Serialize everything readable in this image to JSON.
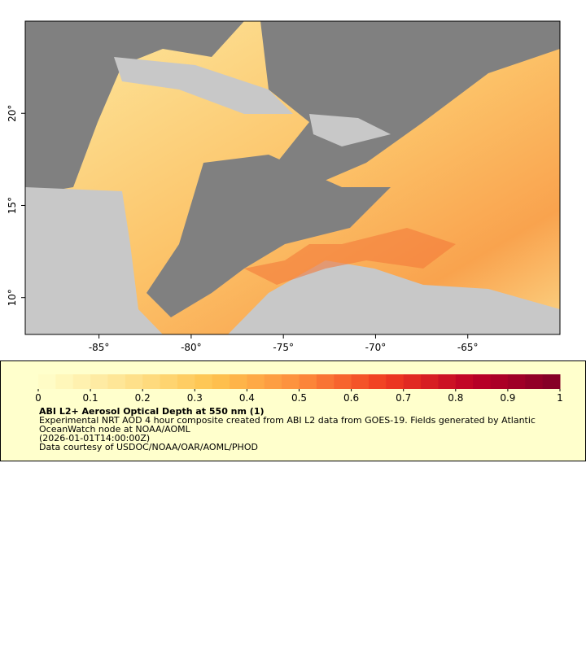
{
  "map": {
    "lon_range": [
      -89,
      -60
    ],
    "lat_range": [
      8,
      25
    ],
    "lon_ticks": [
      {
        "value": -85,
        "label": "-85°"
      },
      {
        "value": -80,
        "label": "-80°"
      },
      {
        "value": -75,
        "label": "-75°"
      },
      {
        "value": -70,
        "label": "-70°"
      },
      {
        "value": -65,
        "label": "-65°"
      }
    ],
    "lat_ticks": [
      {
        "value": 10,
        "label": "10°"
      },
      {
        "value": 15,
        "label": "15°"
      },
      {
        "value": 20,
        "label": "20°"
      }
    ]
  },
  "colorbar": {
    "range": [
      0,
      1
    ],
    "ticks": [
      0,
      0.1,
      0.2,
      0.3,
      0.4,
      0.5,
      0.6,
      0.7,
      0.8,
      0.9,
      1
    ],
    "colors": [
      "#ffffcc",
      "#fee391",
      "#fec44f",
      "#fd8d3c",
      "#f03b20",
      "#bd0026",
      "#800026"
    ]
  },
  "legend": {
    "title": "ABI L2+ Aerosol Optical Depth at 550 nm (1)",
    "description": "Experimental NRT AOD 4 hour composite created from ABI L2 data from GOES-19. Fields generated by Atlantic OceanWatch node at NOAA/AOML",
    "time": "(2026-01-01T14:00:00Z)",
    "credit": "Data courtesy of USDOC/NOAA/OAR/AOML/PHOD"
  }
}
